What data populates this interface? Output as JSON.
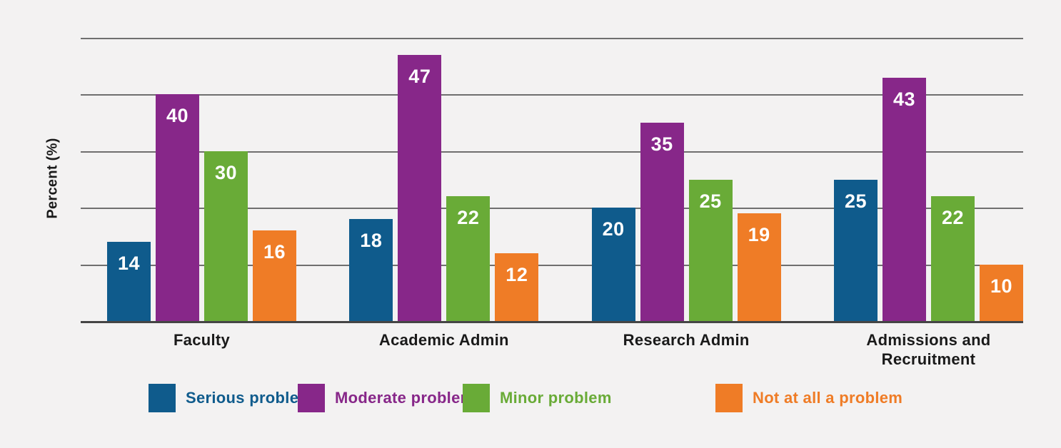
{
  "chart_data": {
    "type": "bar",
    "title": "",
    "xlabel": "",
    "ylabel": "Percent (%)",
    "ylim": [
      0,
      50
    ],
    "gridline_step": 10,
    "grid": true,
    "value_labels": true,
    "legend_position": "bottom",
    "categories": [
      "Faculty",
      "Academic Admin",
      "Research Admin",
      "Admissions and Recruitment"
    ],
    "series": [
      {
        "name": "Serious problem",
        "color": "#0F5B8C",
        "values": [
          14,
          18,
          20,
          25
        ]
      },
      {
        "name": "Moderate problem",
        "color": "#872789",
        "values": [
          40,
          47,
          35,
          43
        ]
      },
      {
        "name": "Minor problem",
        "color": "#69AB37",
        "values": [
          30,
          22,
          25,
          22
        ]
      },
      {
        "name": "Not at all a problem",
        "color": "#EF7C26",
        "values": [
          16,
          12,
          19,
          10
        ]
      }
    ]
  },
  "colors": {
    "background": "#F3F2F2",
    "gridline": "#6F6F6F",
    "axis_line": "#454545",
    "category_label": "#1A1A1A",
    "value_label": "#FFFFFF"
  }
}
